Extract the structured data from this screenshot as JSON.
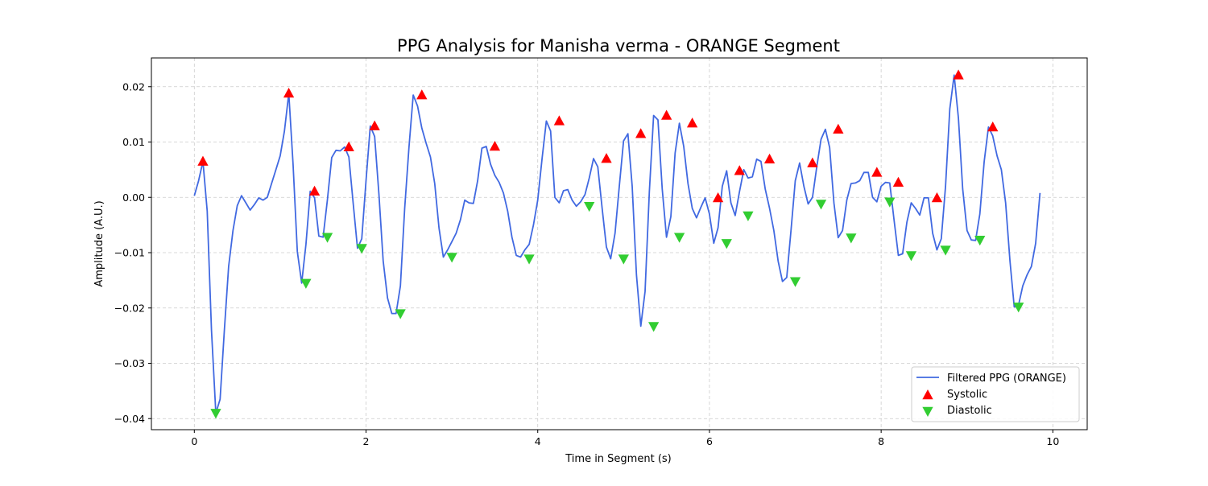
{
  "chart_data": {
    "type": "line",
    "title": "PPG Analysis for Manisha verma - ORANGE Segment",
    "xlabel": "Time in Segment (s)",
    "ylabel": "Amplitude (A.U.)",
    "xlim": [
      -0.5,
      10.4
    ],
    "ylim": [
      -0.042,
      0.0252
    ],
    "xticks": [
      0,
      2,
      4,
      6,
      8,
      10
    ],
    "xtick_labels": [
      "0",
      "2",
      "4",
      "6",
      "8",
      "10"
    ],
    "yticks": [
      -0.04,
      -0.03,
      -0.02,
      -0.01,
      0.0,
      0.01,
      0.02
    ],
    "ytick_labels": [
      "−0.04",
      "−0.03",
      "−0.02",
      "−0.01",
      "0.00",
      "0.01",
      "0.02"
    ],
    "grid": true,
    "legend_position": "lower-right",
    "series": [
      {
        "name": "Filtered PPG (ORANGE)",
        "kind": "line",
        "color": "#4169e1",
        "points": [
          [
            0.0,
            0.0003
          ],
          [
            0.05,
            0.003
          ],
          [
            0.1,
            0.0065
          ],
          [
            0.15,
            -0.0025
          ],
          [
            0.2,
            -0.024
          ],
          [
            0.25,
            -0.039
          ],
          [
            0.3,
            -0.0365
          ],
          [
            0.35,
            -0.024
          ],
          [
            0.4,
            -0.0125
          ],
          [
            0.45,
            -0.006
          ],
          [
            0.5,
            -0.0015
          ],
          [
            0.55,
            0.0003
          ],
          [
            0.6,
            -0.001
          ],
          [
            0.65,
            -0.0023
          ],
          [
            0.7,
            -0.0013
          ],
          [
            0.75,
            -0.0001
          ],
          [
            0.8,
            -0.0005
          ],
          [
            0.85,
            0.0
          ],
          [
            0.9,
            0.0025
          ],
          [
            0.95,
            0.005
          ],
          [
            1.0,
            0.0075
          ],
          [
            1.05,
            0.012
          ],
          [
            1.1,
            0.0188
          ],
          [
            1.15,
            0.006
          ],
          [
            1.2,
            -0.0098
          ],
          [
            1.25,
            -0.0155
          ],
          [
            1.3,
            -0.0085
          ],
          [
            1.35,
            0.0011
          ],
          [
            1.4,
            -0.0001
          ],
          [
            1.45,
            -0.007
          ],
          [
            1.5,
            -0.0072
          ],
          [
            1.55,
            -0.0005
          ],
          [
            1.6,
            0.0072
          ],
          [
            1.65,
            0.0085
          ],
          [
            1.7,
            0.0084
          ],
          [
            1.75,
            0.0091
          ],
          [
            1.8,
            0.0073
          ],
          [
            1.85,
            -0.001
          ],
          [
            1.9,
            -0.0092
          ],
          [
            1.95,
            -0.0075
          ],
          [
            2.0,
            0.003
          ],
          [
            2.05,
            0.0129
          ],
          [
            2.1,
            0.011
          ],
          [
            2.15,
            0.0006
          ],
          [
            2.2,
            -0.0115
          ],
          [
            2.25,
            -0.0182
          ],
          [
            2.3,
            -0.021
          ],
          [
            2.35,
            -0.021
          ],
          [
            2.4,
            -0.016
          ],
          [
            2.45,
            -0.002
          ],
          [
            2.5,
            0.009
          ],
          [
            2.55,
            0.0185
          ],
          [
            2.6,
            0.0165
          ],
          [
            2.65,
            0.0125
          ],
          [
            2.7,
            0.0098
          ],
          [
            2.75,
            0.0073
          ],
          [
            2.8,
            0.0025
          ],
          [
            2.85,
            -0.0055
          ],
          [
            2.9,
            -0.0108
          ],
          [
            2.95,
            -0.0095
          ],
          [
            3.0,
            -0.008
          ],
          [
            3.05,
            -0.0065
          ],
          [
            3.1,
            -0.004
          ],
          [
            3.15,
            -0.0005
          ],
          [
            3.2,
            -0.001
          ],
          [
            3.25,
            -0.0011
          ],
          [
            3.3,
            0.003
          ],
          [
            3.35,
            0.0089
          ],
          [
            3.4,
            0.0092
          ],
          [
            3.45,
            0.006
          ],
          [
            3.5,
            0.004
          ],
          [
            3.55,
            0.0027
          ],
          [
            3.6,
            0.0008
          ],
          [
            3.65,
            -0.0025
          ],
          [
            3.7,
            -0.0072
          ],
          [
            3.75,
            -0.0105
          ],
          [
            3.8,
            -0.0108
          ],
          [
            3.85,
            -0.0095
          ],
          [
            3.9,
            -0.0085
          ],
          [
            3.95,
            -0.005
          ],
          [
            4.0,
            -0.0005
          ],
          [
            4.05,
            0.007
          ],
          [
            4.1,
            0.0138
          ],
          [
            4.15,
            0.012
          ],
          [
            4.2,
            0.0
          ],
          [
            4.25,
            -0.001
          ],
          [
            4.3,
            0.0012
          ],
          [
            4.35,
            0.0014
          ],
          [
            4.4,
            -0.0005
          ],
          [
            4.45,
            -0.0016
          ],
          [
            4.5,
            -0.0008
          ],
          [
            4.55,
            0.0005
          ],
          [
            4.6,
            0.0035
          ],
          [
            4.65,
            0.007
          ],
          [
            4.7,
            0.0055
          ],
          [
            4.75,
            -0.002
          ],
          [
            4.8,
            -0.009
          ],
          [
            4.85,
            -0.0111
          ],
          [
            4.9,
            -0.0065
          ],
          [
            4.95,
            0.002
          ],
          [
            5.0,
            0.0102
          ],
          [
            5.05,
            0.0115
          ],
          [
            5.1,
            0.002
          ],
          [
            5.15,
            -0.014
          ],
          [
            5.2,
            -0.0233
          ],
          [
            5.25,
            -0.017
          ],
          [
            5.3,
            0.001
          ],
          [
            5.35,
            0.0148
          ],
          [
            5.4,
            0.014
          ],
          [
            5.45,
            0.0015
          ],
          [
            5.5,
            -0.0072
          ],
          [
            5.55,
            -0.0035
          ],
          [
            5.6,
            0.008
          ],
          [
            5.65,
            0.0134
          ],
          [
            5.7,
            0.0092
          ],
          [
            5.75,
            0.0025
          ],
          [
            5.8,
            -0.002
          ],
          [
            5.85,
            -0.0037
          ],
          [
            5.9,
            -0.0018
          ],
          [
            5.95,
            -0.0001
          ],
          [
            6.0,
            -0.003
          ],
          [
            6.05,
            -0.0083
          ],
          [
            6.1,
            -0.0055
          ],
          [
            6.15,
            0.002
          ],
          [
            6.2,
            0.0048
          ],
          [
            6.25,
            -0.001
          ],
          [
            6.3,
            -0.0033
          ],
          [
            6.35,
            0.001
          ],
          [
            6.4,
            0.005
          ],
          [
            6.45,
            0.0035
          ],
          [
            6.5,
            0.0037
          ],
          [
            6.55,
            0.0069
          ],
          [
            6.6,
            0.0065
          ],
          [
            6.65,
            0.0015
          ],
          [
            6.7,
            -0.002
          ],
          [
            6.75,
            -0.006
          ],
          [
            6.8,
            -0.0115
          ],
          [
            6.85,
            -0.0152
          ],
          [
            6.9,
            -0.0145
          ],
          [
            6.95,
            -0.006
          ],
          [
            7.0,
            0.003
          ],
          [
            7.05,
            0.0062
          ],
          [
            7.1,
            0.002
          ],
          [
            7.15,
            -0.0012
          ],
          [
            7.2,
            0.0
          ],
          [
            7.25,
            0.0055
          ],
          [
            7.3,
            0.0105
          ],
          [
            7.35,
            0.0123
          ],
          [
            7.4,
            0.009
          ],
          [
            7.45,
            -0.001
          ],
          [
            7.5,
            -0.0073
          ],
          [
            7.55,
            -0.006
          ],
          [
            7.6,
            -0.0005
          ],
          [
            7.65,
            0.0025
          ],
          [
            7.7,
            0.0026
          ],
          [
            7.75,
            0.003
          ],
          [
            7.8,
            0.0045
          ],
          [
            7.85,
            0.0045
          ],
          [
            7.9,
            0.0
          ],
          [
            7.95,
            -0.0008
          ],
          [
            8.0,
            0.002
          ],
          [
            8.05,
            0.0027
          ],
          [
            8.1,
            0.0026
          ],
          [
            8.15,
            -0.004
          ],
          [
            8.2,
            -0.0105
          ],
          [
            8.25,
            -0.0102
          ],
          [
            8.3,
            -0.0045
          ],
          [
            8.35,
            -0.001
          ],
          [
            8.4,
            -0.002
          ],
          [
            8.45,
            -0.0032
          ],
          [
            8.5,
            -0.0001
          ],
          [
            8.55,
            -0.0001
          ],
          [
            8.6,
            -0.0065
          ],
          [
            8.65,
            -0.0095
          ],
          [
            8.7,
            -0.0075
          ],
          [
            8.75,
            0.002
          ],
          [
            8.8,
            0.016
          ],
          [
            8.85,
            0.0221
          ],
          [
            8.9,
            0.0143
          ],
          [
            8.95,
            0.0015
          ],
          [
            9.0,
            -0.006
          ],
          [
            9.05,
            -0.0077
          ],
          [
            9.1,
            -0.0078
          ],
          [
            9.15,
            -0.003
          ],
          [
            9.2,
            0.0065
          ],
          [
            9.25,
            0.0127
          ],
          [
            9.3,
            0.0111
          ],
          [
            9.35,
            0.0075
          ],
          [
            9.4,
            0.005
          ],
          [
            9.45,
            -0.001
          ],
          [
            9.5,
            -0.0115
          ],
          [
            9.55,
            -0.0198
          ],
          [
            9.6,
            -0.0195
          ],
          [
            9.65,
            -0.016
          ],
          [
            9.7,
            -0.014
          ],
          [
            9.75,
            -0.0125
          ],
          [
            9.8,
            -0.0083
          ],
          [
            9.85,
            0.0008
          ]
        ]
      },
      {
        "name": "Systolic",
        "kind": "scatter",
        "marker": "triangle-up",
        "color": "#ff0000",
        "points": [
          [
            0.1,
            0.0065
          ],
          [
            1.1,
            0.0188
          ],
          [
            1.4,
            0.0011
          ],
          [
            1.8,
            0.0091
          ],
          [
            2.1,
            0.0129
          ],
          [
            2.65,
            0.0185
          ],
          [
            3.5,
            0.0092
          ],
          [
            4.25,
            0.0138
          ],
          [
            4.8,
            0.007
          ],
          [
            5.2,
            0.0115
          ],
          [
            5.5,
            0.0148
          ],
          [
            5.8,
            0.0134
          ],
          [
            6.1,
            -0.0001
          ],
          [
            6.35,
            0.0048
          ],
          [
            6.7,
            0.0069
          ],
          [
            7.2,
            0.0062
          ],
          [
            7.5,
            0.0123
          ],
          [
            7.95,
            0.0045
          ],
          [
            8.2,
            0.0027
          ],
          [
            8.65,
            -0.0001
          ],
          [
            8.9,
            0.0221
          ],
          [
            9.3,
            0.0127
          ]
        ]
      },
      {
        "name": "Diastolic",
        "kind": "scatter",
        "marker": "triangle-down",
        "color": "#32cd32",
        "points": [
          [
            0.25,
            -0.039
          ],
          [
            1.3,
            -0.0155
          ],
          [
            1.55,
            -0.0072
          ],
          [
            1.95,
            -0.0092
          ],
          [
            2.4,
            -0.021
          ],
          [
            3.0,
            -0.0108
          ],
          [
            3.9,
            -0.0111
          ],
          [
            4.6,
            -0.0016
          ],
          [
            5.0,
            -0.0111
          ],
          [
            5.35,
            -0.0233
          ],
          [
            5.65,
            -0.0072
          ],
          [
            6.2,
            -0.0083
          ],
          [
            6.45,
            -0.0033
          ],
          [
            7.0,
            -0.0152
          ],
          [
            7.3,
            -0.0012
          ],
          [
            7.65,
            -0.0073
          ],
          [
            8.1,
            -0.0008
          ],
          [
            8.35,
            -0.0105
          ],
          [
            8.75,
            -0.0095
          ],
          [
            9.15,
            -0.0077
          ],
          [
            9.6,
            -0.0198
          ]
        ]
      }
    ]
  }
}
